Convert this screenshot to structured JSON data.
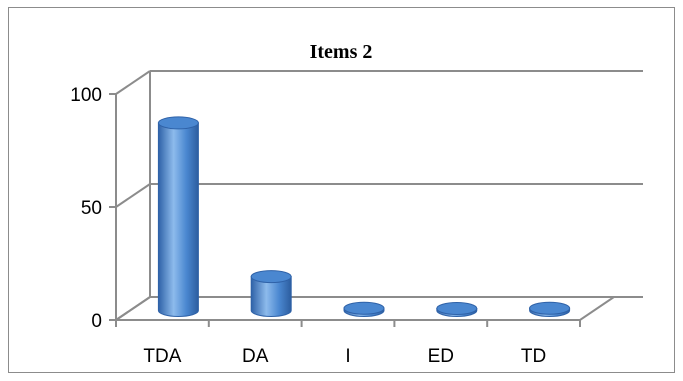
{
  "chart_data": {
    "type": "bar",
    "title": "Items 2",
    "categories": [
      "TDA",
      "DA",
      "I",
      "ED",
      "TD"
    ],
    "values": [
      83,
      15,
      1,
      0,
      1
    ],
    "xlabel": "",
    "ylabel": "",
    "ylim": [
      0,
      100
    ],
    "yticks": [
      0,
      50,
      100
    ],
    "grid": true,
    "legend": "none",
    "colors": {
      "bar": "#4a87d0",
      "bar_dark": "#2f62a8",
      "bar_light": "#8dbbec",
      "grid": "#8c8c8c"
    }
  }
}
